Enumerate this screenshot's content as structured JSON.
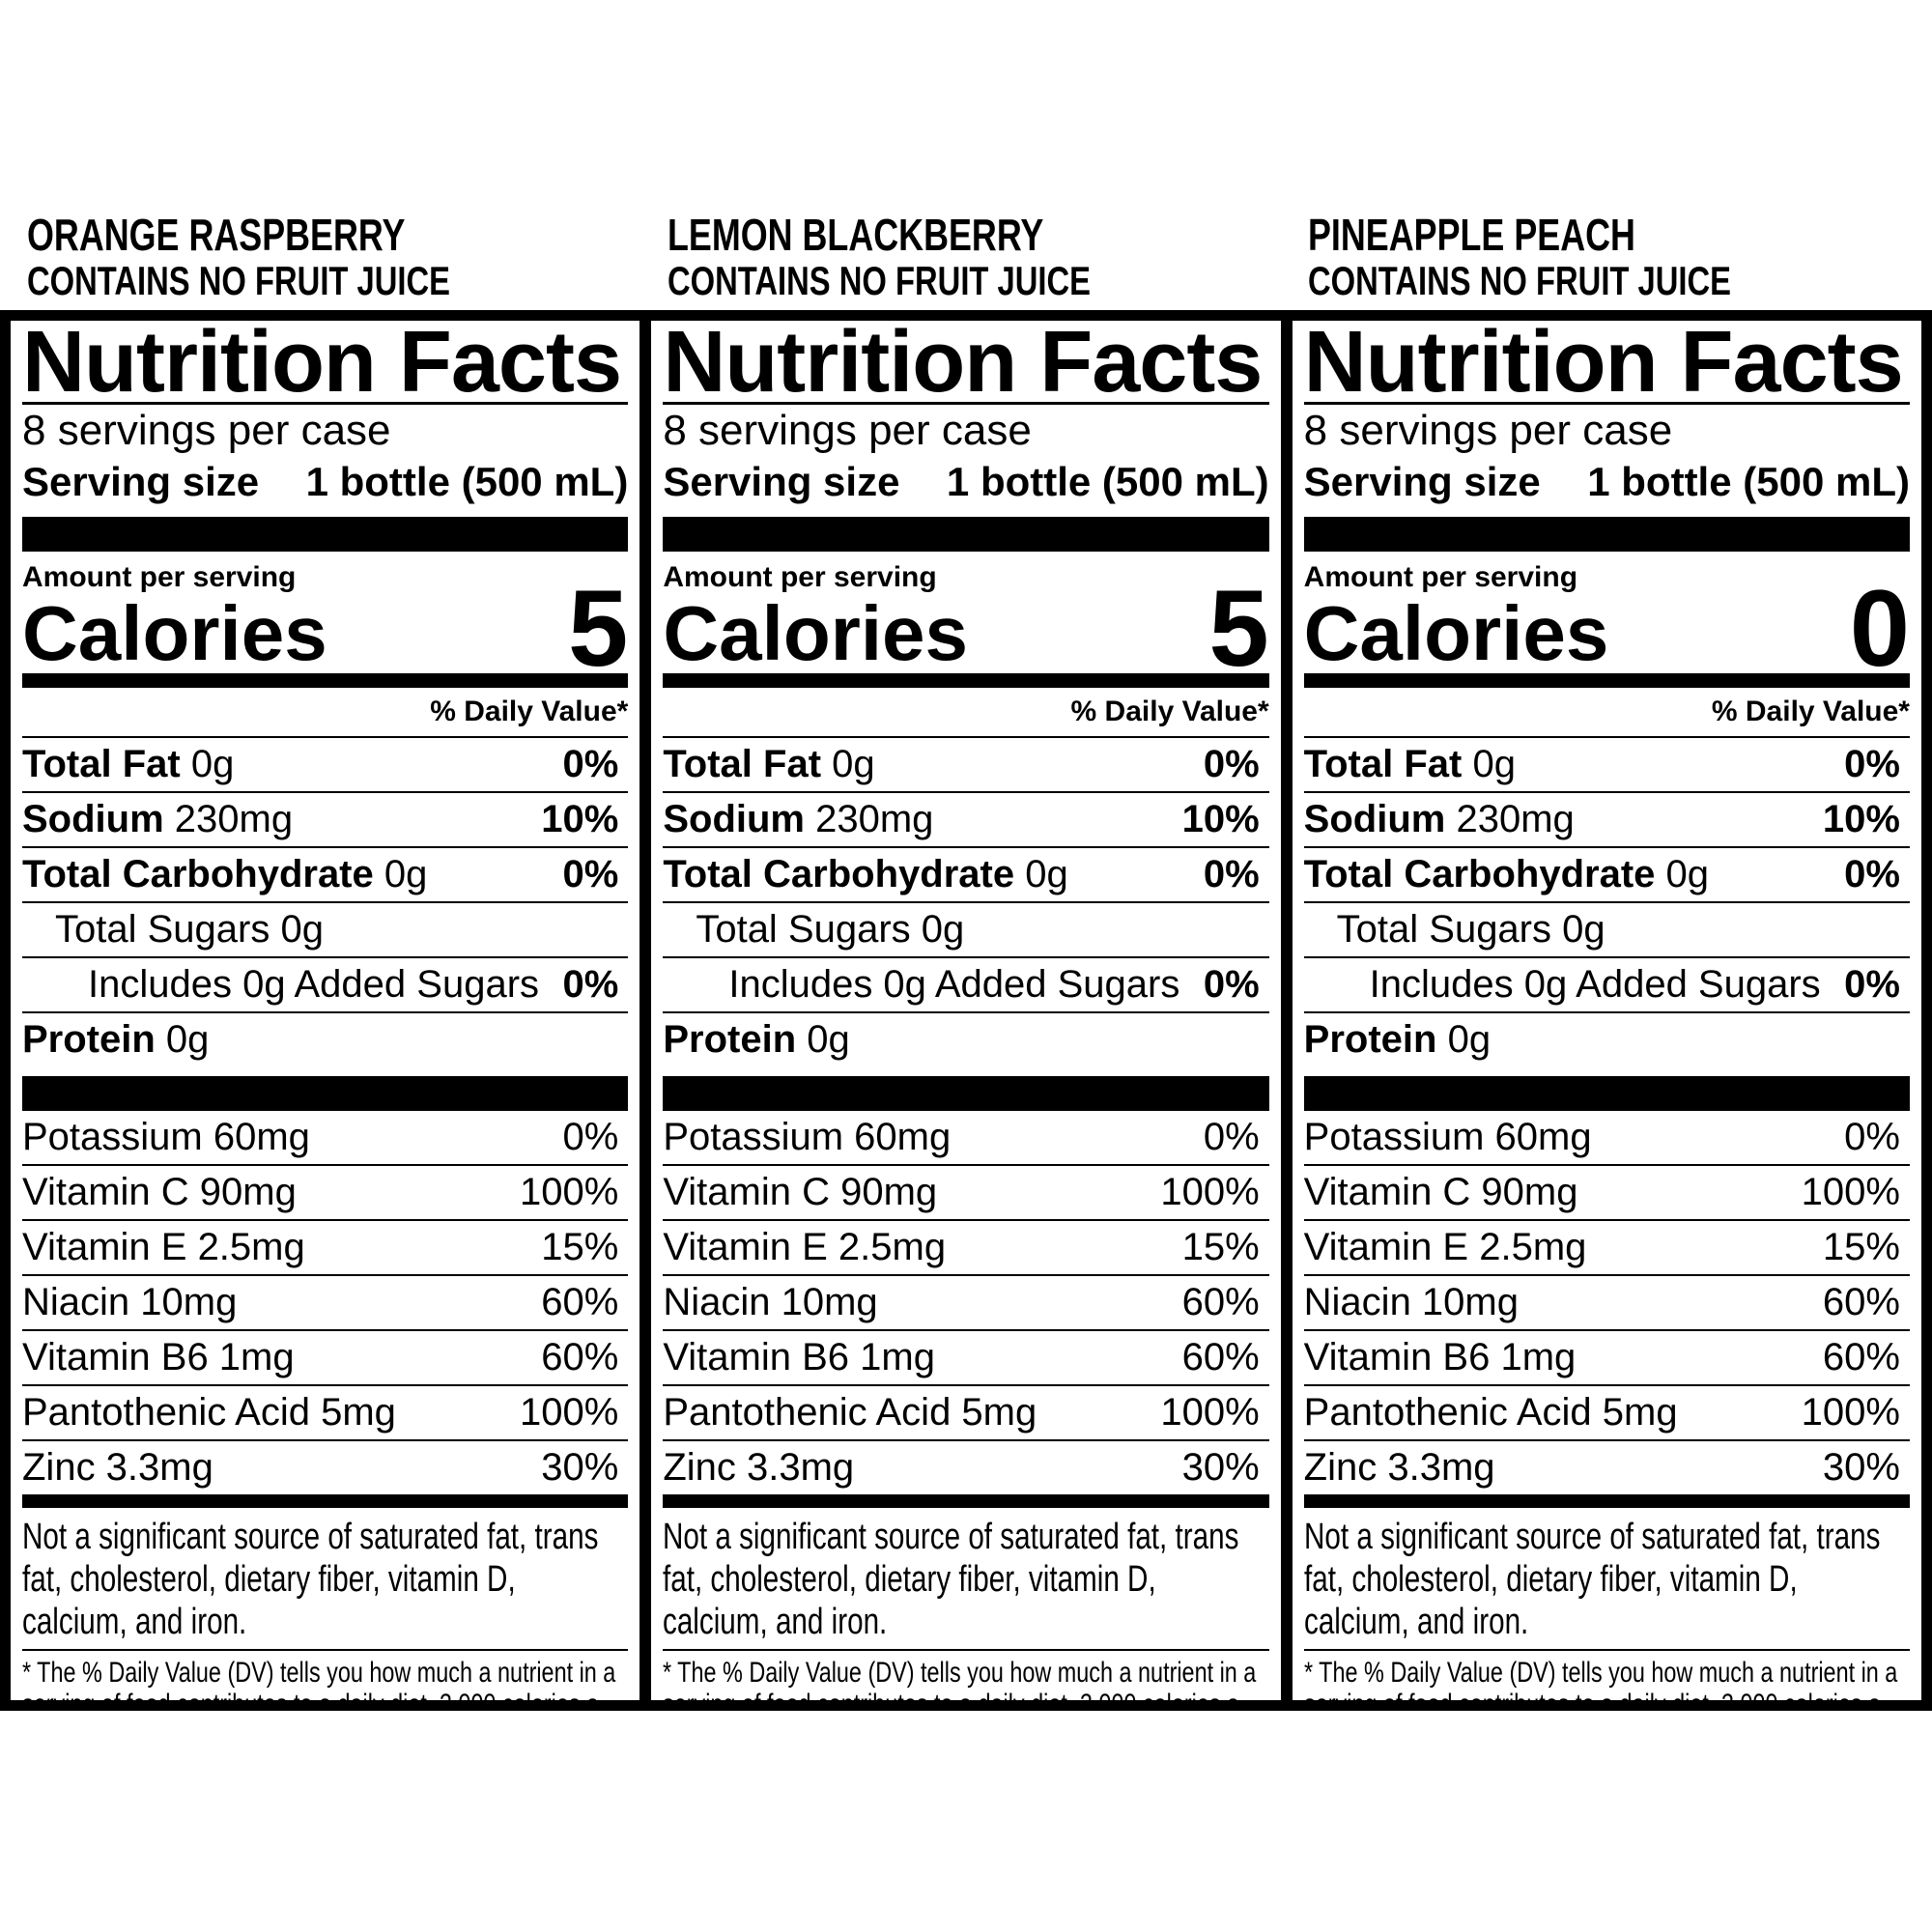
{
  "panels": [
    {
      "flavor": "ORANGE RASPBERRY",
      "juice_note": "CONTAINS NO FRUIT JUICE",
      "title": "Nutrition Facts",
      "servings": "8 servings per case",
      "serving_size_label": "Serving size",
      "serving_size_value": "1 bottle (500 mL)",
      "amount_label": "Amount per serving",
      "calories_label": "Calories",
      "calories": "5",
      "dv_header": "% Daily Value*",
      "nutrients": [
        {
          "name": "Total Fat",
          "amount": "0g",
          "dv": "0%",
          "indent": 0,
          "bold": true
        },
        {
          "name": "Sodium",
          "amount": "230mg",
          "dv": "10%",
          "indent": 0,
          "bold": true
        },
        {
          "name": "Total Carbohydrate",
          "amount": "0g",
          "dv": "0%",
          "indent": 0,
          "bold": true
        },
        {
          "name": "Total Sugars",
          "amount": "0g",
          "dv": "",
          "indent": 1,
          "bold": false
        },
        {
          "name": "Includes 0g Added Sugars",
          "amount": "",
          "dv": "0%",
          "indent": 2,
          "bold": false
        },
        {
          "name": "Protein",
          "amount": "0g",
          "dv": "",
          "indent": 0,
          "bold": true
        }
      ],
      "vitamins": [
        {
          "name": "Potassium 60mg",
          "dv": "0%"
        },
        {
          "name": "Vitamin C 90mg",
          "dv": "100%"
        },
        {
          "name": "Vitamin E 2.5mg",
          "dv": "15%"
        },
        {
          "name": "Niacin 10mg",
          "dv": "60%"
        },
        {
          "name": "Vitamin B6 1mg",
          "dv": "60%"
        },
        {
          "name": "Pantothenic Acid 5mg",
          "dv": "100%"
        },
        {
          "name": "Zinc 3.3mg",
          "dv": "30%"
        }
      ],
      "not_significant": "Not a significant source of saturated fat, trans fat, cholesterol, dietary fiber, vitamin D, calcium, and iron.",
      "footnote": "* The % Daily Value (DV) tells you how much a nutrient in a serving of food contributes to a daily diet. 2,000 calories a day is used for general nutrition advice."
    },
    {
      "flavor": "LEMON BLACKBERRY",
      "juice_note": "CONTAINS NO FRUIT JUICE",
      "title": "Nutrition Facts",
      "servings": "8 servings per case",
      "serving_size_label": "Serving size",
      "serving_size_value": "1 bottle (500 mL)",
      "amount_label": "Amount per serving",
      "calories_label": "Calories",
      "calories": "5",
      "dv_header": "% Daily Value*",
      "nutrients": [
        {
          "name": "Total Fat",
          "amount": "0g",
          "dv": "0%",
          "indent": 0,
          "bold": true
        },
        {
          "name": "Sodium",
          "amount": "230mg",
          "dv": "10%",
          "indent": 0,
          "bold": true
        },
        {
          "name": "Total Carbohydrate",
          "amount": "0g",
          "dv": "0%",
          "indent": 0,
          "bold": true
        },
        {
          "name": "Total Sugars",
          "amount": "0g",
          "dv": "",
          "indent": 1,
          "bold": false
        },
        {
          "name": "Includes 0g Added Sugars",
          "amount": "",
          "dv": "0%",
          "indent": 2,
          "bold": false
        },
        {
          "name": "Protein",
          "amount": "0g",
          "dv": "",
          "indent": 0,
          "bold": true
        }
      ],
      "vitamins": [
        {
          "name": "Potassium 60mg",
          "dv": "0%"
        },
        {
          "name": "Vitamin C 90mg",
          "dv": "100%"
        },
        {
          "name": "Vitamin E 2.5mg",
          "dv": "15%"
        },
        {
          "name": "Niacin 10mg",
          "dv": "60%"
        },
        {
          "name": "Vitamin B6 1mg",
          "dv": "60%"
        },
        {
          "name": "Pantothenic Acid 5mg",
          "dv": "100%"
        },
        {
          "name": "Zinc 3.3mg",
          "dv": "30%"
        }
      ],
      "not_significant": "Not a significant source of saturated fat, trans fat, cholesterol, dietary fiber, vitamin D, calcium, and iron.",
      "footnote": "* The % Daily Value (DV) tells you how much a nutrient in a serving of food contributes to a daily diet. 2,000 calories a day is used for general nutrition advice."
    },
    {
      "flavor": "PINEAPPLE PEACH",
      "juice_note": "CONTAINS NO FRUIT JUICE",
      "title": "Nutrition Facts",
      "servings": "8 servings per case",
      "serving_size_label": "Serving size",
      "serving_size_value": "1 bottle (500 mL)",
      "amount_label": "Amount per serving",
      "calories_label": "Calories",
      "calories": "0",
      "dv_header": "% Daily Value*",
      "nutrients": [
        {
          "name": "Total Fat",
          "amount": "0g",
          "dv": "0%",
          "indent": 0,
          "bold": true
        },
        {
          "name": "Sodium",
          "amount": "230mg",
          "dv": "10%",
          "indent": 0,
          "bold": true
        },
        {
          "name": "Total Carbohydrate",
          "amount": "0g",
          "dv": "0%",
          "indent": 0,
          "bold": true
        },
        {
          "name": "Total Sugars",
          "amount": "0g",
          "dv": "",
          "indent": 1,
          "bold": false
        },
        {
          "name": "Includes 0g Added Sugars",
          "amount": "",
          "dv": "0%",
          "indent": 2,
          "bold": false
        },
        {
          "name": "Protein",
          "amount": "0g",
          "dv": "",
          "indent": 0,
          "bold": true
        }
      ],
      "vitamins": [
        {
          "name": "Potassium 60mg",
          "dv": "0%"
        },
        {
          "name": "Vitamin C 90mg",
          "dv": "100%"
        },
        {
          "name": "Vitamin E 2.5mg",
          "dv": "15%"
        },
        {
          "name": "Niacin 10mg",
          "dv": "60%"
        },
        {
          "name": "Vitamin B6 1mg",
          "dv": "60%"
        },
        {
          "name": "Pantothenic Acid 5mg",
          "dv": "100%"
        },
        {
          "name": "Zinc 3.3mg",
          "dv": "30%"
        }
      ],
      "not_significant": "Not a significant source of saturated fat, trans fat, cholesterol, dietary fiber, vitamin D, calcium, and iron.",
      "footnote": "* The % Daily Value (DV) tells you how much a nutrient in a serving of food contributes to a daily diet. 2,000 calories a day is used for general nutrition advice."
    }
  ]
}
